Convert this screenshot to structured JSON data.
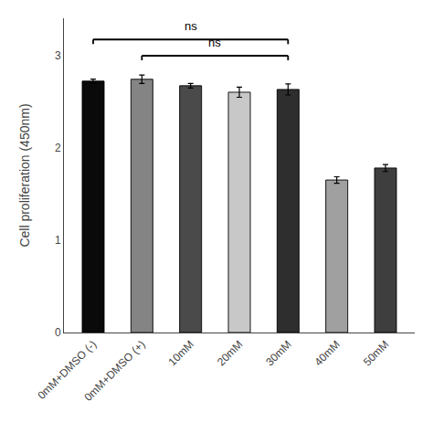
{
  "chart_data": {
    "type": "bar",
    "categories": [
      "0mM+DMSO (-)",
      "0mM+DMSO (+)",
      "10mM",
      "20mM",
      "30mM",
      "40mM",
      "50mM"
    ],
    "values": [
      2.72,
      2.74,
      2.67,
      2.6,
      2.63,
      1.65,
      1.78
    ],
    "errors": [
      0.022,
      0.045,
      0.025,
      0.055,
      0.06,
      0.035,
      0.038
    ],
    "colors": [
      "#0a0a0a",
      "#848484",
      "#4a4a4a",
      "#c8c8c8",
      "#2e2e2e",
      "#a0a0a0",
      "#3e3e3e"
    ],
    "ylabel": "Cell proliferation (450nm)",
    "ylim": [
      0,
      3.4
    ],
    "yticks": [
      0,
      1,
      2,
      3
    ],
    "grid": false,
    "annotations": [
      {
        "text": "ns",
        "from": "0mM+DMSO (-)",
        "to": "30mM",
        "y": 3.17,
        "text_y": 3.22
      },
      {
        "text": "ns",
        "from": "0mM+DMSO (+)",
        "to": "30mM",
        "y": 2.995,
        "text_y": 3.045
      }
    ]
  }
}
